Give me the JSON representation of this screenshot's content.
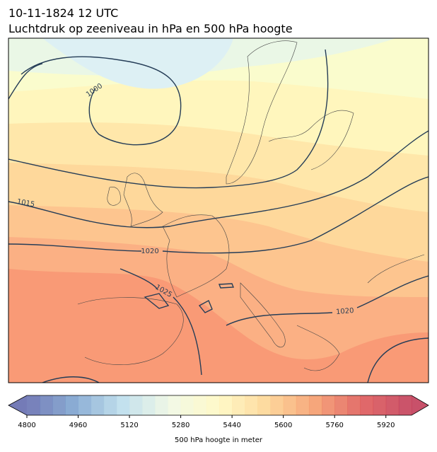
{
  "title": [
    "10-11-1824 12 UTC",
    "Luchtdruk op zeeniveau in hPa en 500 hPa hoogte"
  ],
  "contour_labels": [
    "1000",
    "1015",
    "1020",
    "1025",
    "1020"
  ],
  "colorbar": {
    "lim": [
      4800,
      6000
    ],
    "ticks": [
      4800,
      4960,
      5120,
      5280,
      5440,
      5600,
      5760,
      5920
    ],
    "label": "500 hPa hoogte in meter"
  }
}
